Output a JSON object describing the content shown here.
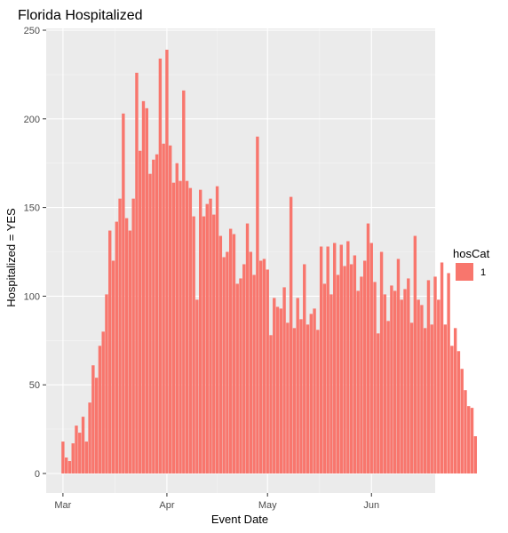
{
  "chart_data": {
    "type": "bar",
    "title": "Florida Hospitalized",
    "xlabel": "Event Date",
    "ylabel": "Hospitalized = YES",
    "ylim": [
      0,
      250
    ],
    "y_ticks": [
      0,
      50,
      100,
      150,
      200,
      250
    ],
    "x_ticks": [
      {
        "label": "Mar",
        "date": "2020-03-01"
      },
      {
        "label": "Apr",
        "date": "2020-04-01"
      },
      {
        "label": "May",
        "date": "2020-05-01"
      },
      {
        "label": "Jun",
        "date": "2020-06-01"
      }
    ],
    "x_range": [
      "2020-02-25",
      "2020-06-20"
    ],
    "start_date": "2020-03-01",
    "grid": true,
    "legend": {
      "title": "hosCat",
      "position": "right",
      "entries": [
        {
          "label": "1",
          "color": "#F8766D"
        }
      ]
    },
    "colors": {
      "bar": "#F8766D",
      "panel": "#EBEBEB",
      "grid_major": "#FFFFFF",
      "grid_minor": "#F5F5F5"
    },
    "values": [
      18,
      9,
      7,
      17,
      27,
      23,
      32,
      18,
      40,
      61,
      54,
      72,
      80,
      101,
      137,
      120,
      142,
      155,
      203,
      144,
      137,
      155,
      226,
      182,
      210,
      206,
      169,
      177,
      180,
      234,
      186,
      239,
      185,
      164,
      175,
      165,
      216,
      165,
      161,
      145,
      98,
      160,
      145,
      152,
      155,
      146,
      162,
      134,
      122,
      125,
      138,
      135,
      107,
      110,
      118,
      141,
      125,
      112,
      190,
      120,
      121,
      115,
      78,
      99,
      94,
      93,
      105,
      85,
      156,
      82,
      99,
      87,
      118,
      84,
      90,
      93,
      81,
      128,
      107,
      128,
      101,
      130,
      112,
      129,
      117,
      131,
      118,
      123,
      103,
      111,
      120,
      141,
      130,
      108,
      79,
      125,
      101,
      86,
      106,
      103,
      121,
      98,
      104,
      110,
      85,
      134,
      98,
      95,
      82,
      109,
      84,
      111,
      98,
      119,
      84,
      113,
      72,
      82,
      69,
      59,
      47,
      38,
      37,
      21
    ]
  }
}
